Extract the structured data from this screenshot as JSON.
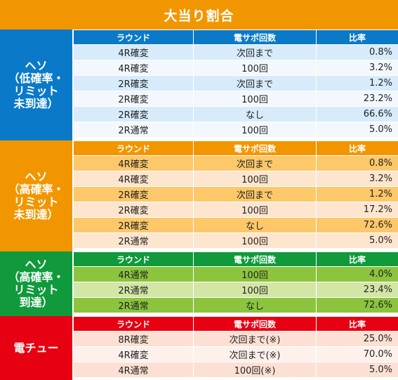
{
  "title": "大当り割合",
  "sections": [
    {
      "label": "ヘソ\n（低確率・\nリミット\n未到達）",
      "headers": [
        "ラウンド",
        "電サポ回数",
        "比率"
      ],
      "rows": [
        [
          "4R確変",
          "次回まで",
          "0.8%"
        ],
        [
          "4R確変",
          "100回",
          "3.2%"
        ],
        [
          "2R確変",
          "次回まで",
          "1.2%"
        ],
        [
          "2R確変",
          "100回",
          "23.2%"
        ],
        [
          "2R確変",
          "なし",
          "66.6%"
        ],
        [
          "2R通常",
          "100回",
          "5.0%"
        ]
      ]
    },
    {
      "label": "ヘソ\n（高確率・\nリミット\n未到達）",
      "headers": [
        "ラウンド",
        "電サポ回数",
        "比率"
      ],
      "rows": [
        [
          "4R確変",
          "次回まで",
          "0.8%"
        ],
        [
          "4R確変",
          "100回",
          "3.2%"
        ],
        [
          "2R確変",
          "次回まで",
          "1.2%"
        ],
        [
          "2R確変",
          "100回",
          "17.2%"
        ],
        [
          "2R確変",
          "なし",
          "72.6%"
        ],
        [
          "2R通常",
          "100回",
          "5.0%"
        ]
      ]
    },
    {
      "label": "ヘソ\n（高確率・\nリミット\n到達）",
      "headers": [
        "ラウンド",
        "電サポ回数",
        "比率"
      ],
      "rows": [
        [
          "4R通常",
          "100回",
          "4.0%"
        ],
        [
          "2R通常",
          "100回",
          "23.4%"
        ],
        [
          "2R通常",
          "なし",
          "72.6%"
        ]
      ]
    },
    {
      "label": "電チュー",
      "headers": [
        "ラウンド",
        "電サポ回数",
        "比率"
      ],
      "rows": [
        [
          "8R確変",
          "次回まで(※)",
          "25.0%"
        ],
        [
          "4R確変",
          "次回まで(※)",
          "70.0%"
        ],
        [
          "4R通常",
          "100回(※)",
          "5.0%"
        ]
      ]
    }
  ]
}
